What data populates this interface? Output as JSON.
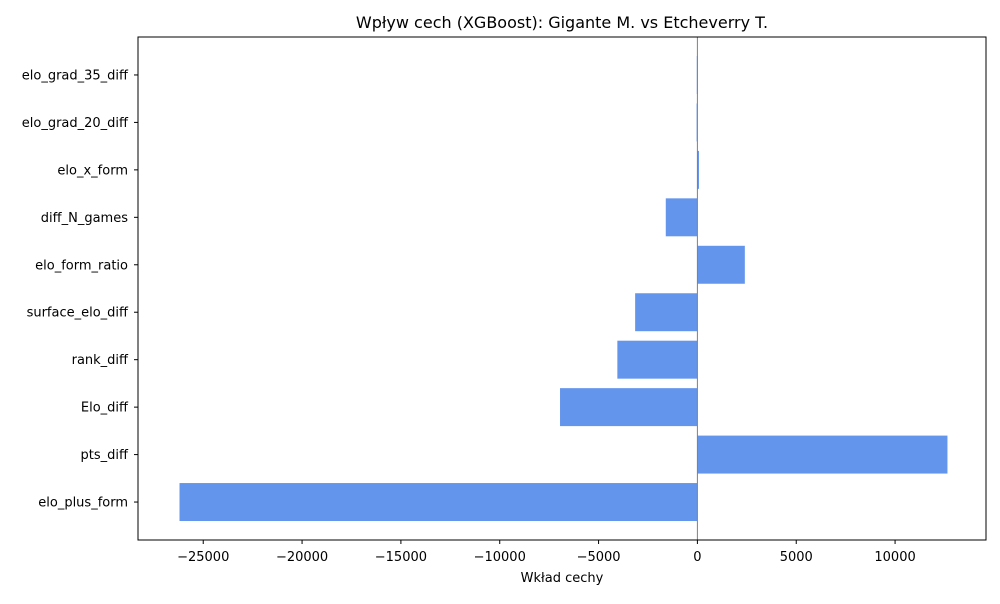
{
  "chart_data": {
    "type": "bar",
    "orientation": "horizontal",
    "title": "Wpływ cech (XGBoost): Gigante M. vs Etcheverry T.",
    "xlabel": "Wkład cechy",
    "ylabel": "",
    "categories": [
      "elo_plus_form",
      "pts_diff",
      "Elo_diff",
      "rank_diff",
      "surface_elo_diff",
      "elo_form_ratio",
      "diff_N_games",
      "elo_x_form",
      "elo_grad_20_diff",
      "elo_grad_35_diff"
    ],
    "values": [
      -26200,
      12650,
      -6950,
      -4050,
      -3150,
      2400,
      -1600,
      80,
      -40,
      -30
    ],
    "xlim": [
      -28300,
      14600
    ],
    "xticks": [
      -25000,
      -20000,
      -15000,
      -10000,
      -5000,
      0,
      5000,
      10000
    ],
    "xtick_labels": [
      "−25000",
      "−20000",
      "−15000",
      "−10000",
      "−5000",
      "0",
      "5000",
      "10000"
    ],
    "bar_color": "#6495ed",
    "zero_line_color": "#808080",
    "grid": false,
    "legend": "none"
  }
}
